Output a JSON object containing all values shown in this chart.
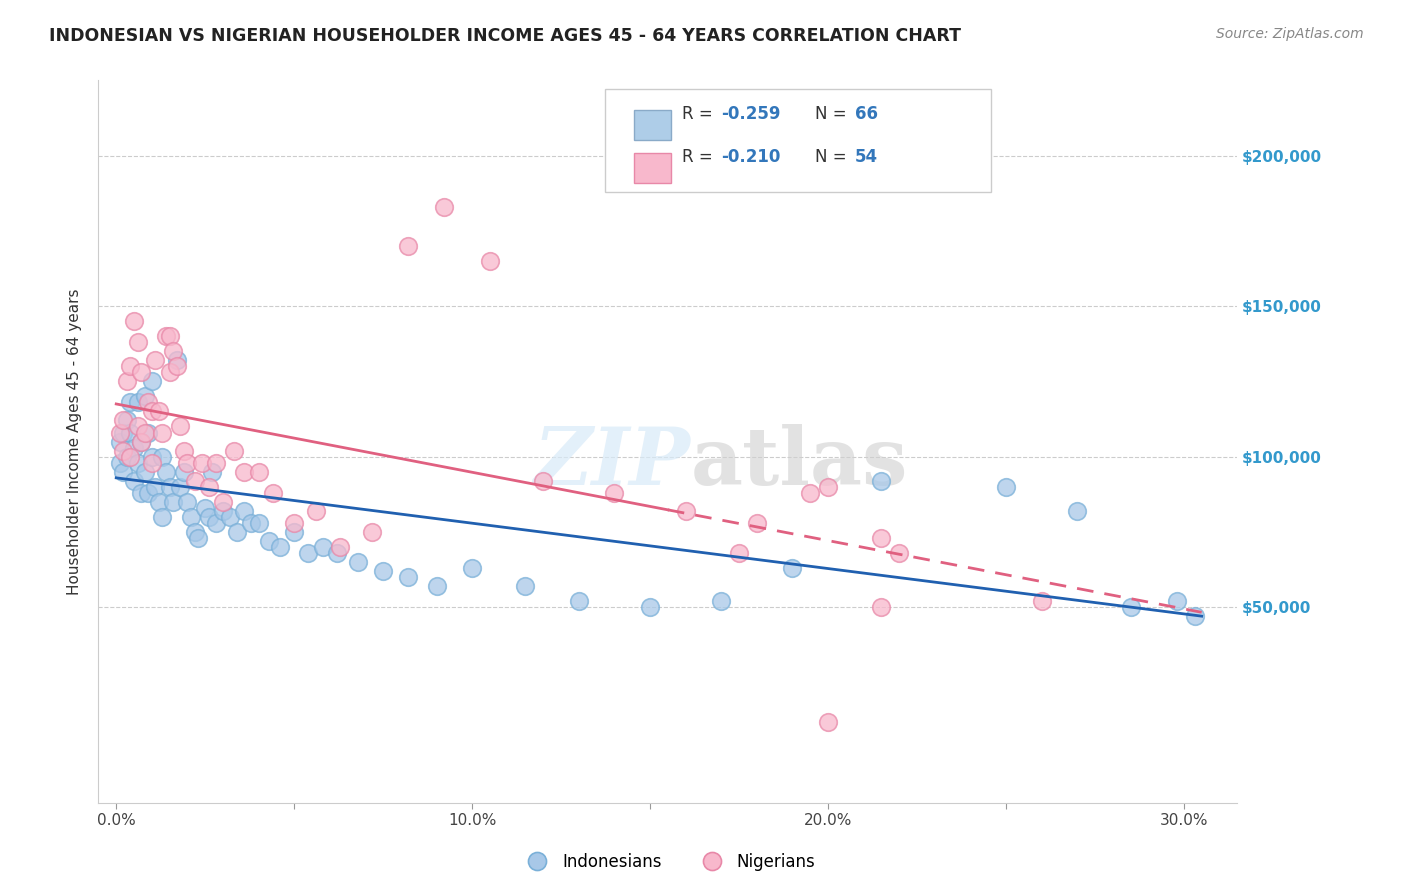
{
  "title": "INDONESIAN VS NIGERIAN HOUSEHOLDER INCOME AGES 45 - 64 YEARS CORRELATION CHART",
  "source": "Source: ZipAtlas.com",
  "ylabel": "Householder Income Ages 45 - 64 years",
  "xlim": [
    -0.005,
    0.315
  ],
  "ylim": [
    -15000,
    225000
  ],
  "blue_color": "#a8c8e8",
  "blue_edge": "#7ab0d8",
  "pink_color": "#f8b8cc",
  "pink_edge": "#e888a8",
  "trendline_blue": "#2060b0",
  "trendline_pink": "#e06080",
  "indonesian_x": [
    0.001,
    0.001,
    0.002,
    0.002,
    0.003,
    0.003,
    0.004,
    0.004,
    0.005,
    0.005,
    0.006,
    0.006,
    0.007,
    0.007,
    0.008,
    0.008,
    0.009,
    0.009,
    0.01,
    0.01,
    0.011,
    0.012,
    0.013,
    0.013,
    0.014,
    0.015,
    0.016,
    0.017,
    0.018,
    0.019,
    0.02,
    0.021,
    0.022,
    0.023,
    0.025,
    0.026,
    0.027,
    0.028,
    0.03,
    0.032,
    0.034,
    0.036,
    0.038,
    0.04,
    0.043,
    0.046,
    0.05,
    0.054,
    0.058,
    0.062,
    0.068,
    0.075,
    0.082,
    0.09,
    0.1,
    0.115,
    0.13,
    0.15,
    0.17,
    0.19,
    0.215,
    0.25,
    0.27,
    0.285,
    0.298,
    0.303
  ],
  "indonesian_y": [
    105000,
    98000,
    108000,
    95000,
    112000,
    100000,
    108000,
    118000,
    103000,
    92000,
    118000,
    98000,
    105000,
    88000,
    120000,
    95000,
    108000,
    88000,
    125000,
    100000,
    90000,
    85000,
    100000,
    80000,
    95000,
    90000,
    85000,
    132000,
    90000,
    95000,
    85000,
    80000,
    75000,
    73000,
    83000,
    80000,
    95000,
    78000,
    82000,
    80000,
    75000,
    82000,
    78000,
    78000,
    72000,
    70000,
    75000,
    68000,
    70000,
    68000,
    65000,
    62000,
    60000,
    57000,
    63000,
    57000,
    52000,
    50000,
    52000,
    63000,
    92000,
    90000,
    82000,
    50000,
    52000,
    47000
  ],
  "nigerian_x": [
    0.001,
    0.002,
    0.002,
    0.003,
    0.004,
    0.004,
    0.005,
    0.006,
    0.006,
    0.007,
    0.007,
    0.008,
    0.009,
    0.01,
    0.01,
    0.011,
    0.012,
    0.013,
    0.014,
    0.015,
    0.015,
    0.016,
    0.017,
    0.018,
    0.019,
    0.02,
    0.022,
    0.024,
    0.026,
    0.028,
    0.03,
    0.033,
    0.036,
    0.04,
    0.044,
    0.05,
    0.056,
    0.063,
    0.072,
    0.082,
    0.092,
    0.105,
    0.12,
    0.14,
    0.16,
    0.18,
    0.2,
    0.22,
    0.26,
    0.215,
    0.195,
    0.175,
    0.215,
    0.2
  ],
  "nigerian_y": [
    108000,
    112000,
    102000,
    125000,
    130000,
    100000,
    145000,
    138000,
    110000,
    128000,
    105000,
    108000,
    118000,
    115000,
    98000,
    132000,
    115000,
    108000,
    140000,
    128000,
    140000,
    135000,
    130000,
    110000,
    102000,
    98000,
    92000,
    98000,
    90000,
    98000,
    85000,
    102000,
    95000,
    95000,
    88000,
    78000,
    82000,
    70000,
    75000,
    170000,
    183000,
    165000,
    92000,
    88000,
    82000,
    78000,
    90000,
    68000,
    52000,
    73000,
    88000,
    68000,
    50000,
    12000
  ]
}
